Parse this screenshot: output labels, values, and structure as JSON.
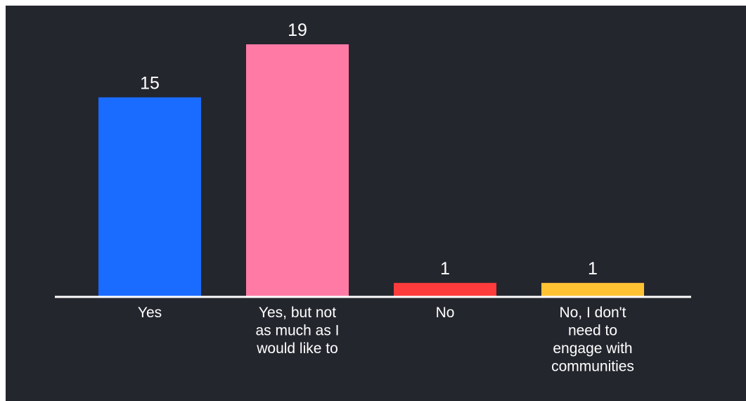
{
  "chart_data": {
    "type": "bar",
    "categories": [
      "Yes",
      "Yes, but not as much as I would like to",
      "No",
      "No, I don't need to engage with communities"
    ],
    "category_lines": [
      [
        "Yes"
      ],
      [
        "Yes, but not",
        "as much as I",
        "would like to"
      ],
      [
        "No"
      ],
      [
        "No, I don't",
        "need to",
        "engage with",
        "communities"
      ]
    ],
    "values": [
      15,
      19,
      1,
      1
    ],
    "colors": [
      "#1a6bff",
      "#ff7ba6",
      "#ff3b3b",
      "#ffc233"
    ],
    "title": "",
    "xlabel": "",
    "ylabel": "",
    "ylim": [
      0,
      19
    ],
    "grid": false,
    "legend": "none",
    "background": "#24262e",
    "baseline_color": "#ffffff"
  }
}
